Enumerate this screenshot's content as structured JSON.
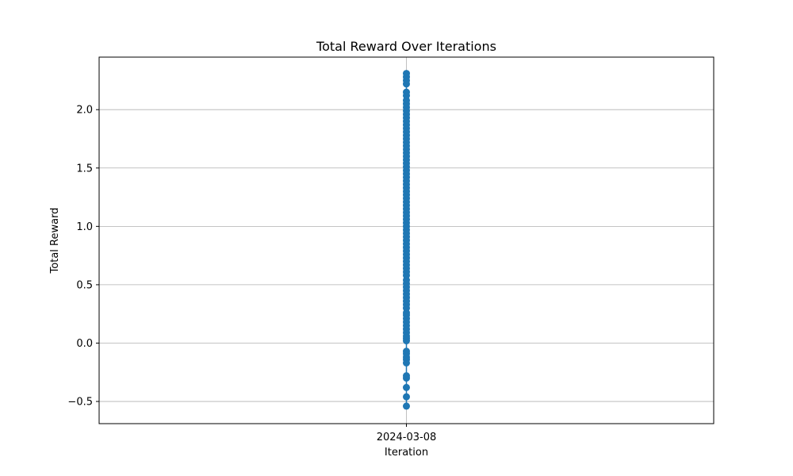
{
  "chart_data": {
    "type": "scatter",
    "title": "Total Reward Over Iterations",
    "xlabel": "Iteration",
    "ylabel": "Total Reward",
    "x_ticks": [
      "2024-03-08"
    ],
    "x_category": "2024-03-08",
    "y_ticks": [
      -0.5,
      0.0,
      0.5,
      1.0,
      1.5,
      2.0
    ],
    "y_tick_labels": [
      "−0.5",
      "0.0",
      "0.5",
      "1.0",
      "1.5",
      "2.0"
    ],
    "ylim": [
      -0.69,
      2.45
    ],
    "grid": true,
    "connected": true,
    "series_color": "#1f77b4",
    "series": [
      {
        "x": "2024-03-08",
        "values": [
          -0.54,
          -0.46,
          -0.38,
          -0.3,
          -0.28,
          -0.17,
          -0.14,
          -0.12,
          -0.09,
          -0.07,
          0.02,
          0.04,
          0.06,
          0.09,
          0.12,
          0.15,
          0.18,
          0.21,
          0.24,
          0.26,
          0.3,
          0.33,
          0.36,
          0.39,
          0.42,
          0.45,
          0.48,
          0.51,
          0.54,
          0.58,
          0.61,
          0.64,
          0.67,
          0.7,
          0.73,
          0.76,
          0.79,
          0.82,
          0.85,
          0.88,
          0.91,
          0.94,
          0.97,
          1.0,
          1.03,
          1.06,
          1.09,
          1.12,
          1.15,
          1.18,
          1.21,
          1.24,
          1.27,
          1.3,
          1.33,
          1.36,
          1.39,
          1.42,
          1.45,
          1.48,
          1.51,
          1.54,
          1.57,
          1.6,
          1.63,
          1.66,
          1.69,
          1.72,
          1.75,
          1.78,
          1.81,
          1.84,
          1.87,
          1.9,
          1.93,
          1.96,
          1.99,
          2.02,
          2.05,
          2.08,
          2.12,
          2.15,
          2.22,
          2.25,
          2.28,
          2.31
        ]
      }
    ]
  }
}
